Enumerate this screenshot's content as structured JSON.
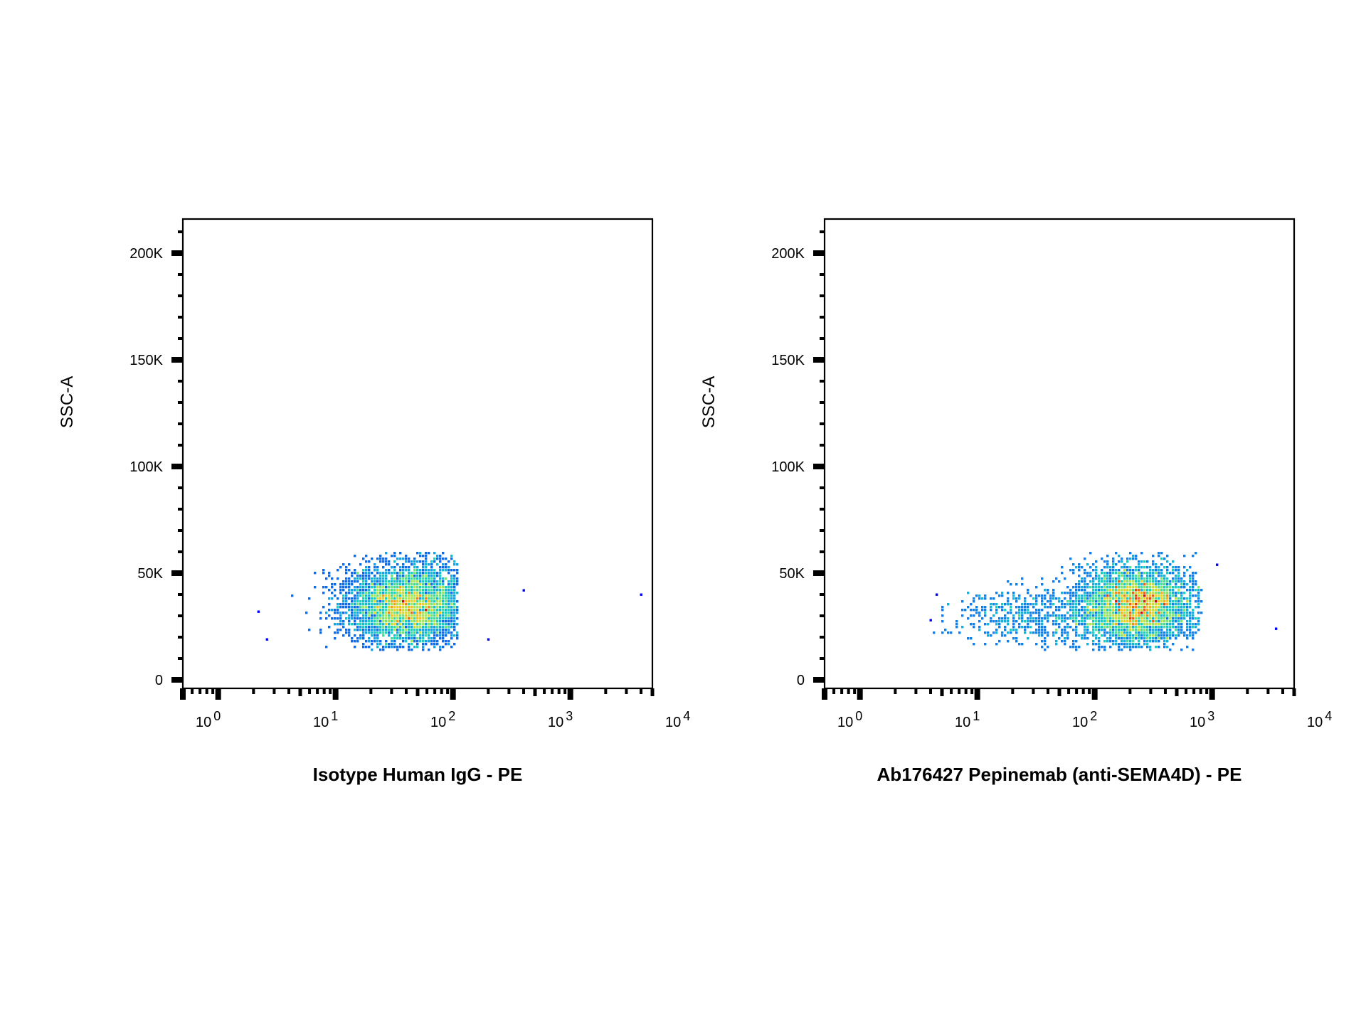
{
  "chart_data": [
    {
      "type": "scatter",
      "subtype": "flow-cytometry-density-dot-plot",
      "xlabel": "Isotype Human IgG - PE",
      "ylabel": "SSC-A",
      "x_scale": "log",
      "xlim": [
        0.5,
        5000
      ],
      "ylim": [
        -4000,
        216000
      ],
      "x_tick_labels": [
        {
          "value": 1,
          "base": "10",
          "exp": "0"
        },
        {
          "value": 10,
          "base": "10",
          "exp": "1"
        },
        {
          "value": 100,
          "base": "10",
          "exp": "2"
        },
        {
          "value": 1000,
          "base": "10",
          "exp": "3"
        },
        {
          "value": 10000,
          "base": "10",
          "exp": "4"
        }
      ],
      "y_tick_labels": [
        {
          "value": 0,
          "label": "0"
        },
        {
          "value": 50000,
          "label": "50K"
        },
        {
          "value": 100000,
          "label": "100K"
        },
        {
          "value": 150000,
          "label": "150K"
        },
        {
          "value": 200000,
          "label": "200K"
        }
      ],
      "populations": [
        {
          "x_center": 42,
          "x_log_sd": 0.27,
          "x_min": 2.5,
          "x_max": 110,
          "y_center": 35000,
          "y_sd": 9500,
          "y_min": 14000,
          "y_max": 60000,
          "count": 4200
        }
      ],
      "outliers": [
        {
          "x": 2.2,
          "y": 32000
        },
        {
          "x": 2.6,
          "y": 19000
        },
        {
          "x": 200,
          "y": 19000
        },
        {
          "x": 400,
          "y": 42000
        },
        {
          "x": 4000,
          "y": 40000
        }
      ],
      "colormap": [
        "#0000ff",
        "#00a0ff",
        "#00e0c0",
        "#a0f040",
        "#ffd000",
        "#ff6000",
        "#e00000"
      ]
    },
    {
      "type": "scatter",
      "subtype": "flow-cytometry-density-dot-plot",
      "xlabel": "Ab176427 Pepinemab (anti-SEMA4D) - PE",
      "ylabel": "SSC-A",
      "x_scale": "log",
      "xlim": [
        0.5,
        5000
      ],
      "ylim": [
        -4000,
        216000
      ],
      "x_tick_labels": [
        {
          "value": 1,
          "base": "10",
          "exp": "0"
        },
        {
          "value": 10,
          "base": "10",
          "exp": "1"
        },
        {
          "value": 100,
          "base": "10",
          "exp": "2"
        },
        {
          "value": 1000,
          "base": "10",
          "exp": "3"
        },
        {
          "value": 10000,
          "base": "10",
          "exp": "4"
        }
      ],
      "y_tick_labels": [
        {
          "value": 0,
          "label": "0"
        },
        {
          "value": 50000,
          "label": "50K"
        },
        {
          "value": 100000,
          "label": "100K"
        },
        {
          "value": 150000,
          "label": "150K"
        },
        {
          "value": 200000,
          "label": "200K"
        }
      ],
      "populations": [
        {
          "x_center": 220,
          "x_log_sd": 0.25,
          "x_min": 20,
          "x_max": 800,
          "y_center": 35000,
          "y_sd": 9500,
          "y_min": 14000,
          "y_max": 60000,
          "count": 3800
        },
        {
          "x_center": 30,
          "x_log_sd": 0.35,
          "x_min": 4,
          "x_max": 120,
          "y_center": 30000,
          "y_sd": 7000,
          "y_min": 14000,
          "y_max": 58000,
          "count": 500
        }
      ],
      "outliers": [
        {
          "x": 4.5,
          "y": 40000
        },
        {
          "x": 4,
          "y": 28000
        },
        {
          "x": 1100,
          "y": 54000
        },
        {
          "x": 3500,
          "y": 24000
        }
      ],
      "colormap": [
        "#0000ff",
        "#00a0ff",
        "#00e0c0",
        "#a0f040",
        "#ffd000",
        "#ff6000",
        "#e00000"
      ]
    }
  ]
}
